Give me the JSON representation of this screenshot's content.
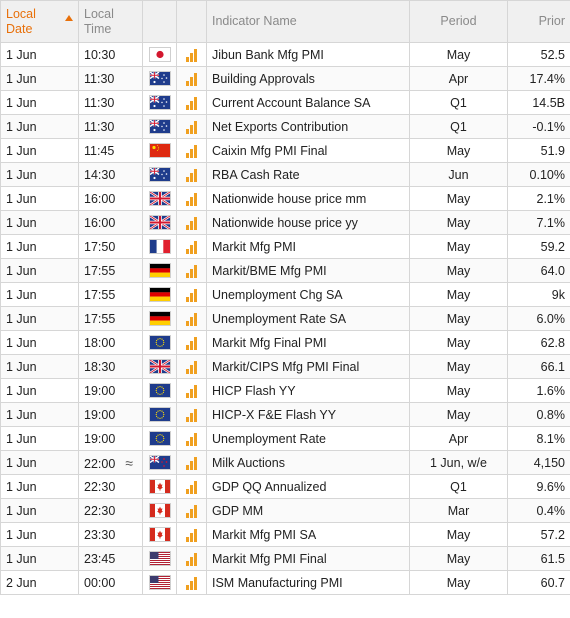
{
  "columns": {
    "local_date": [
      "Local",
      "Date"
    ],
    "local_time": [
      "Local",
      "Time"
    ],
    "indicator": "Indicator Name",
    "period": "Period",
    "prior": "Prior"
  },
  "rows": [
    {
      "date": "1 Jun",
      "time": "10:30",
      "flag": "flag-japan-icon",
      "name": "Jibun Bank Mfg PMI",
      "period": "May",
      "prior": "52.5"
    },
    {
      "date": "1 Jun",
      "time": "11:30",
      "flag": "flag-australia-icon",
      "name": "Building Approvals",
      "period": "Apr",
      "prior": "17.4%"
    },
    {
      "date": "1 Jun",
      "time": "11:30",
      "flag": "flag-australia-icon",
      "name": "Current Account Balance SA",
      "period": "Q1",
      "prior": "14.5B"
    },
    {
      "date": "1 Jun",
      "time": "11:30",
      "flag": "flag-australia-icon",
      "name": "Net Exports Contribution",
      "period": "Q1",
      "prior": "-0.1%"
    },
    {
      "date": "1 Jun",
      "time": "11:45",
      "flag": "flag-china-icon",
      "name": "Caixin Mfg PMI Final",
      "period": "May",
      "prior": "51.9"
    },
    {
      "date": "1 Jun",
      "time": "14:30",
      "flag": "flag-australia-icon",
      "name": "RBA Cash Rate",
      "period": "Jun",
      "prior": "0.10%"
    },
    {
      "date": "1 Jun",
      "time": "16:00",
      "flag": "flag-uk-icon",
      "name": "Nationwide house price mm",
      "period": "May",
      "prior": "2.1%"
    },
    {
      "date": "1 Jun",
      "time": "16:00",
      "flag": "flag-uk-icon",
      "name": "Nationwide house price yy",
      "period": "May",
      "prior": "7.1%"
    },
    {
      "date": "1 Jun",
      "time": "17:50",
      "flag": "flag-france-icon",
      "name": "Markit Mfg PMI",
      "period": "May",
      "prior": "59.2"
    },
    {
      "date": "1 Jun",
      "time": "17:55",
      "flag": "flag-germany-icon",
      "name": "Markit/BME Mfg PMI",
      "period": "May",
      "prior": "64.0"
    },
    {
      "date": "1 Jun",
      "time": "17:55",
      "flag": "flag-germany-icon",
      "name": "Unemployment Chg SA",
      "period": "May",
      "prior": "9k"
    },
    {
      "date": "1 Jun",
      "time": "17:55",
      "flag": "flag-germany-icon",
      "name": "Unemployment Rate SA",
      "period": "May",
      "prior": "6.0%"
    },
    {
      "date": "1 Jun",
      "time": "18:00",
      "flag": "flag-eu-icon",
      "name": "Markit Mfg Final PMI",
      "period": "May",
      "prior": "62.8"
    },
    {
      "date": "1 Jun",
      "time": "18:30",
      "flag": "flag-uk-icon",
      "name": "Markit/CIPS Mfg PMI Final",
      "period": "May",
      "prior": "66.1"
    },
    {
      "date": "1 Jun",
      "time": "19:00",
      "flag": "flag-eu-icon",
      "name": "HICP Flash YY",
      "period": "May",
      "prior": "1.6%"
    },
    {
      "date": "1 Jun",
      "time": "19:00",
      "flag": "flag-eu-icon",
      "name": "HICP-X F&E Flash YY",
      "period": "May",
      "prior": "0.8%"
    },
    {
      "date": "1 Jun",
      "time": "19:00",
      "flag": "flag-eu-icon",
      "name": "Unemployment Rate",
      "period": "Apr",
      "prior": "8.1%"
    },
    {
      "date": "1 Jun",
      "time": "22:00",
      "approx": "≈",
      "flag": "flag-new-zealand-icon",
      "name": "Milk Auctions",
      "period": "1 Jun, w/e",
      "prior": "4,150"
    },
    {
      "date": "1 Jun",
      "time": "22:30",
      "flag": "flag-canada-icon",
      "name": "GDP QQ Annualized",
      "period": "Q1",
      "prior": "9.6%"
    },
    {
      "date": "1 Jun",
      "time": "22:30",
      "flag": "flag-canada-icon",
      "name": "GDP MM",
      "period": "Mar",
      "prior": "0.4%"
    },
    {
      "date": "1 Jun",
      "time": "23:30",
      "flag": "flag-canada-icon",
      "name": "Markit Mfg PMI SA",
      "period": "May",
      "prior": "57.2"
    },
    {
      "date": "1 Jun",
      "time": "23:45",
      "flag": "flag-usa-icon",
      "name": "Markit Mfg PMI Final",
      "period": "May",
      "prior": "61.5"
    },
    {
      "date": "2 Jun",
      "time": "00:00",
      "flag": "flag-usa-icon",
      "name": "ISM Manufacturing PMI",
      "period": "May",
      "prior": "60.7"
    }
  ],
  "volatility_icon": "volatility-bars-icon",
  "colors": {
    "sorted_header": "#e8700a",
    "volatility_bars": "#f0a020",
    "header_bg": "#f0f0f0",
    "grid": "#d6d6d6"
  }
}
